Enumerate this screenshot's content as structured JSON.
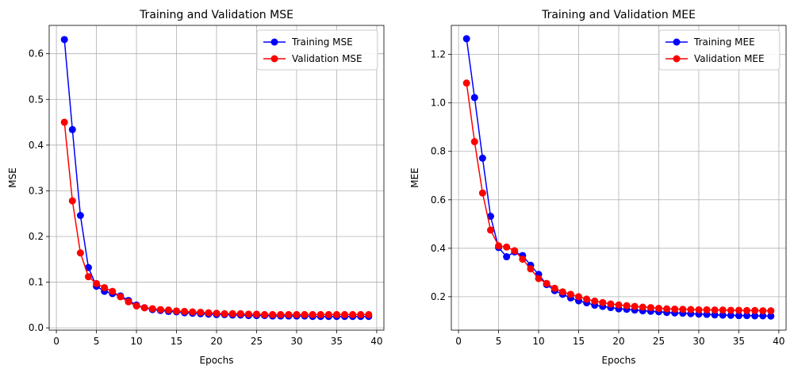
{
  "chart_data": [
    {
      "type": "line",
      "title": "Training and Validation MSE",
      "xlabel": "Epochs",
      "ylabel": "MSE",
      "xlim": [
        -0.9,
        40.9
      ],
      "ylim": [
        -0.005,
        0.662
      ],
      "x_ticks": [
        0,
        5,
        10,
        15,
        20,
        25,
        30,
        35,
        40
      ],
      "y_ticks": [
        0.0,
        0.1,
        0.2,
        0.3,
        0.4,
        0.5,
        0.6
      ],
      "y_tick_labels": [
        "0.0",
        "0.1",
        "0.2",
        "0.3",
        "0.4",
        "0.5",
        "0.6"
      ],
      "grid": true,
      "legend_position": "top-right",
      "x": [
        1,
        2,
        3,
        4,
        5,
        6,
        7,
        8,
        9,
        10,
        11,
        12,
        13,
        14,
        15,
        16,
        17,
        18,
        19,
        20,
        21,
        22,
        23,
        24,
        25,
        26,
        27,
        28,
        29,
        30,
        31,
        32,
        33,
        34,
        35,
        36,
        37,
        38,
        39
      ],
      "series": [
        {
          "name": "Training MSE",
          "color": "#0000ff",
          "values": [
            0.631,
            0.434,
            0.246,
            0.132,
            0.091,
            0.08,
            0.075,
            0.07,
            0.06,
            0.05,
            0.044,
            0.04,
            0.038,
            0.036,
            0.035,
            0.033,
            0.032,
            0.031,
            0.03,
            0.029,
            0.029,
            0.028,
            0.028,
            0.027,
            0.027,
            0.027,
            0.026,
            0.026,
            0.026,
            0.026,
            0.026,
            0.025,
            0.025,
            0.025,
            0.025,
            0.025,
            0.025,
            0.025,
            0.025
          ]
        },
        {
          "name": "Validation MSE",
          "color": "#ff0000",
          "values": [
            0.45,
            0.278,
            0.164,
            0.112,
            0.097,
            0.088,
            0.08,
            0.068,
            0.057,
            0.048,
            0.044,
            0.042,
            0.04,
            0.039,
            0.037,
            0.036,
            0.035,
            0.034,
            0.033,
            0.032,
            0.031,
            0.031,
            0.031,
            0.03,
            0.03,
            0.029,
            0.029,
            0.029,
            0.029,
            0.029,
            0.029,
            0.029,
            0.029,
            0.029,
            0.029,
            0.029,
            0.029,
            0.029,
            0.029
          ]
        }
      ]
    },
    {
      "type": "line",
      "title": "Training and Validation MEE",
      "xlabel": "Epochs",
      "ylabel": "MEE",
      "xlim": [
        -0.9,
        40.9
      ],
      "ylim": [
        0.062,
        1.32
      ],
      "x_ticks": [
        0,
        5,
        10,
        15,
        20,
        25,
        30,
        35,
        40
      ],
      "y_ticks": [
        0.2,
        0.4,
        0.6,
        0.8,
        1.0,
        1.2
      ],
      "y_tick_labels": [
        "0.2",
        "0.4",
        "0.6",
        "0.8",
        "1.0",
        "1.2"
      ],
      "grid": true,
      "legend_position": "top-right",
      "x": [
        1,
        2,
        3,
        4,
        5,
        6,
        7,
        8,
        9,
        10,
        11,
        12,
        13,
        14,
        15,
        16,
        17,
        18,
        19,
        20,
        21,
        22,
        23,
        24,
        25,
        26,
        27,
        28,
        29,
        30,
        31,
        32,
        33,
        34,
        35,
        36,
        37,
        38,
        39
      ],
      "series": [
        {
          "name": "Training MEE",
          "color": "#0000ff",
          "values": [
            1.265,
            1.022,
            0.772,
            0.532,
            0.403,
            0.365,
            0.385,
            0.37,
            0.33,
            0.292,
            0.25,
            0.225,
            0.21,
            0.195,
            0.183,
            0.175,
            0.165,
            0.16,
            0.155,
            0.15,
            0.148,
            0.145,
            0.142,
            0.14,
            0.138,
            0.135,
            0.133,
            0.132,
            0.13,
            0.128,
            0.127,
            0.125,
            0.124,
            0.123,
            0.122,
            0.122,
            0.121,
            0.121,
            0.12
          ]
        },
        {
          "name": "Validation MEE",
          "color": "#ff0000",
          "values": [
            1.082,
            0.84,
            0.628,
            0.475,
            0.41,
            0.405,
            0.39,
            0.355,
            0.315,
            0.275,
            0.255,
            0.235,
            0.22,
            0.21,
            0.2,
            0.19,
            0.182,
            0.176,
            0.17,
            0.166,
            0.163,
            0.16,
            0.157,
            0.155,
            0.152,
            0.15,
            0.149,
            0.148,
            0.147,
            0.146,
            0.146,
            0.145,
            0.145,
            0.144,
            0.144,
            0.143,
            0.143,
            0.142,
            0.142
          ]
        }
      ]
    }
  ]
}
